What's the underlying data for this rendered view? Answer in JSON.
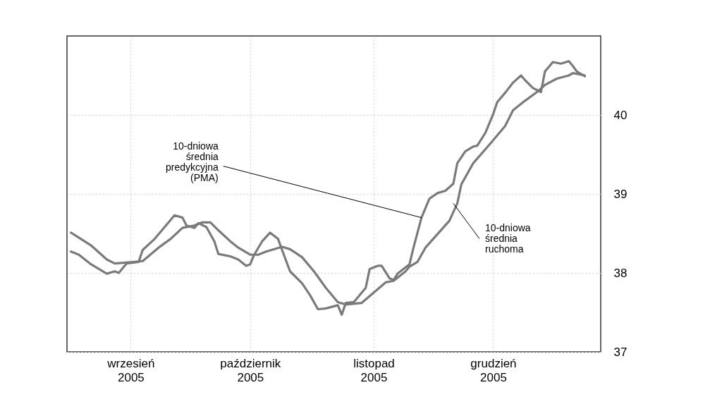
{
  "chart_data": {
    "type": "line",
    "xlim": [
      "2005-08-16",
      "2005-12-28"
    ],
    "ylim": [
      37,
      41
    ],
    "xticks": [
      {
        "value": "2005-09-01",
        "label": "wrzesień\n2005"
      },
      {
        "value": "2005-10-01",
        "label": "październik\n2005"
      },
      {
        "value": "2005-11-01",
        "label": "listopad\n2005"
      },
      {
        "value": "2005-12-01",
        "label": "grudzień\n2005"
      }
    ],
    "yticks": [
      37,
      38,
      39,
      40
    ],
    "grid": true,
    "line_style": "solid",
    "series": [
      {
        "color": "#7a7a7a",
        "x": [
          "2005-08-17",
          "2005-08-19",
          "2005-08-22",
          "2005-08-26",
          "2005-08-28",
          "2005-08-29",
          "2005-08-31",
          "2005-09-03",
          "2005-09-04",
          "2005-09-07",
          "2005-09-10",
          "2005-09-12",
          "2005-09-14",
          "2005-09-15",
          "2005-09-17",
          "2005-09-18",
          "2005-09-20",
          "2005-09-22",
          "2005-09-23",
          "2005-09-26",
          "2005-09-28",
          "2005-09-30",
          "2005-10-01",
          "2005-10-02",
          "2005-10-04",
          "2005-10-06",
          "2005-10-08",
          "2005-10-09",
          "2005-10-11",
          "2005-10-14",
          "2005-10-16",
          "2005-10-18",
          "2005-10-20",
          "2005-10-23",
          "2005-10-24",
          "2005-10-25",
          "2005-10-27",
          "2005-10-30",
          "2005-10-31",
          "2005-11-02",
          "2005-11-03",
          "2005-11-05",
          "2005-11-06",
          "2005-11-07",
          "2005-11-10",
          "2005-11-11",
          "2005-11-13",
          "2005-11-15",
          "2005-11-17",
          "2005-11-19",
          "2005-11-21",
          "2005-11-22",
          "2005-11-24",
          "2005-11-26",
          "2005-11-27",
          "2005-11-29",
          "2005-12-01",
          "2005-12-02",
          "2005-12-04",
          "2005-12-06",
          "2005-12-08",
          "2005-12-09",
          "2005-12-11",
          "2005-12-13",
          "2005-12-14",
          "2005-12-16",
          "2005-12-18",
          "2005-12-20",
          "2005-12-21",
          "2005-12-22",
          "2005-12-24"
        ],
        "values": [
          38.27,
          38.23,
          38.11,
          37.99,
          38.02,
          38.0,
          38.12,
          38.14,
          38.29,
          38.43,
          38.61,
          38.73,
          38.7,
          38.6,
          38.57,
          38.63,
          38.58,
          38.4,
          38.24,
          38.21,
          38.17,
          38.09,
          38.11,
          38.23,
          38.4,
          38.51,
          38.43,
          38.29,
          38.02,
          37.87,
          37.72,
          37.54,
          37.55,
          37.59,
          37.47,
          37.62,
          37.63,
          37.81,
          38.05,
          38.09,
          38.09,
          37.93,
          37.91,
          37.99,
          38.11,
          38.32,
          38.7,
          38.94,
          39.01,
          39.04,
          39.13,
          39.39,
          39.54,
          39.6,
          39.61,
          39.77,
          40.01,
          40.16,
          40.28,
          40.41,
          40.5,
          40.44,
          40.34,
          40.29,
          40.55,
          40.67,
          40.65,
          40.68,
          40.62,
          40.55,
          40.49
        ]
      },
      {
        "color": "#7a7a7a",
        "x": [
          "2005-08-17",
          "2005-08-22",
          "2005-08-26",
          "2005-08-28",
          "2005-09-02",
          "2005-09-04",
          "2005-09-08",
          "2005-09-11",
          "2005-09-14",
          "2005-09-17",
          "2005-09-19",
          "2005-09-21",
          "2005-09-23",
          "2005-09-26",
          "2005-09-28",
          "2005-10-01",
          "2005-10-03",
          "2005-10-05",
          "2005-10-09",
          "2005-10-11",
          "2005-10-14",
          "2005-10-17",
          "2005-10-20",
          "2005-10-23",
          "2005-10-25",
          "2005-10-29",
          "2005-11-01",
          "2005-11-04",
          "2005-11-06",
          "2005-11-09",
          "2005-11-10",
          "2005-11-12",
          "2005-11-14",
          "2005-11-17",
          "2005-11-20",
          "2005-11-22",
          "2005-11-23",
          "2005-11-26",
          "2005-11-30",
          "2005-12-04",
          "2005-12-06",
          "2005-12-09",
          "2005-12-12",
          "2005-12-14",
          "2005-12-17",
          "2005-12-20",
          "2005-12-21",
          "2005-12-22",
          "2005-12-24"
        ],
        "values": [
          38.51,
          38.35,
          38.17,
          38.12,
          38.14,
          38.15,
          38.32,
          38.43,
          38.57,
          38.6,
          38.64,
          38.64,
          38.54,
          38.4,
          38.32,
          38.23,
          38.23,
          38.27,
          38.33,
          38.3,
          38.2,
          38.02,
          37.81,
          37.63,
          37.6,
          37.62,
          37.75,
          37.88,
          37.9,
          38.02,
          38.08,
          38.14,
          38.32,
          38.49,
          38.66,
          38.88,
          39.12,
          39.39,
          39.62,
          39.86,
          40.06,
          40.18,
          40.29,
          40.38,
          40.46,
          40.5,
          40.53,
          40.52,
          40.5
        ]
      }
    ],
    "annotations": [
      {
        "text": "10-dniowa\nśrednia\npredykcyjna\n(PMA)",
        "x": "2005-11-13",
        "y": 38.7
      },
      {
        "text": "10-dniowa\nśrednia\nruchoma",
        "x": "2005-11-21",
        "y": 38.88
      }
    ]
  }
}
